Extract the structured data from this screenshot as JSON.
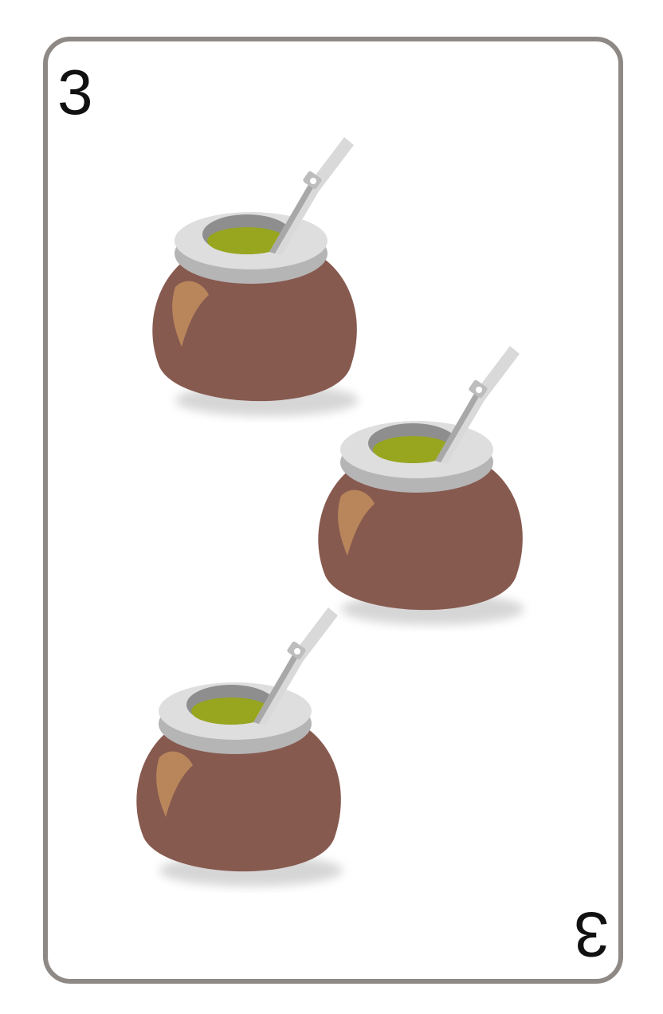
{
  "card": {
    "rank_top": "3",
    "rank_bottom": "3",
    "suit_icon": "mate-gourd-icon",
    "pip_count": 3
  },
  "colors": {
    "border": "#8f8986",
    "gourd_body": "#875a50",
    "gourd_highlight": "#b9865b",
    "rim_light": "#dedede",
    "rim_shadow": "#b5b5b5",
    "inner_cavity": "#8e8e8e",
    "yerba": "#97a61e",
    "straw": "#d9d9d9",
    "straw_dark": "#a8a8a8",
    "shadow": "#d6d6d6"
  }
}
